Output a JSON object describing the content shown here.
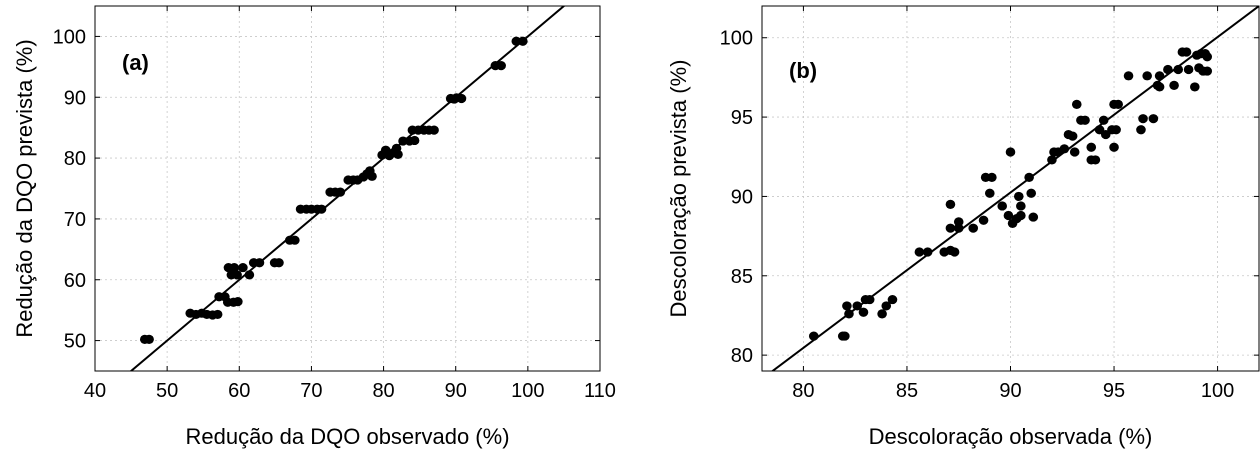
{
  "chart_data": [
    {
      "type": "scatter",
      "panel_label": "(a)",
      "xlabel": "Redução da DQO observado (%)",
      "ylabel": "Redução da DQO prevista (%)",
      "xlim": [
        40,
        110
      ],
      "ylim": [
        45,
        105
      ],
      "xticks": [
        40,
        50,
        60,
        70,
        80,
        90,
        100,
        110
      ],
      "yticks": [
        50,
        60,
        70,
        80,
        90,
        100
      ],
      "grid": true,
      "fit_line": {
        "type": "y=x",
        "x": [
          40,
          110
        ],
        "y": [
          40,
          110
        ]
      },
      "points": [
        [
          46.9,
          50.2
        ],
        [
          47.5,
          50.2
        ],
        [
          53.2,
          54.5
        ],
        [
          54.0,
          54.3
        ],
        [
          54.8,
          54.5
        ],
        [
          55.5,
          54.3
        ],
        [
          56.3,
          54.2
        ],
        [
          57.0,
          54.3
        ],
        [
          57.2,
          57.2
        ],
        [
          58.0,
          57.2
        ],
        [
          58.4,
          56.3
        ],
        [
          59.2,
          56.3
        ],
        [
          59.8,
          56.4
        ],
        [
          58.5,
          62.0
        ],
        [
          59.3,
          62.0
        ],
        [
          58.9,
          60.8
        ],
        [
          59.7,
          60.8
        ],
        [
          60.5,
          62.0
        ],
        [
          61.4,
          60.8
        ],
        [
          62.0,
          62.8
        ],
        [
          62.8,
          62.8
        ],
        [
          64.9,
          62.8
        ],
        [
          65.5,
          62.8
        ],
        [
          67.0,
          66.5
        ],
        [
          67.7,
          66.5
        ],
        [
          68.5,
          71.6
        ],
        [
          69.3,
          71.6
        ],
        [
          70.0,
          71.6
        ],
        [
          70.8,
          71.6
        ],
        [
          71.4,
          71.6
        ],
        [
          72.6,
          74.4
        ],
        [
          73.3,
          74.4
        ],
        [
          74.0,
          74.4
        ],
        [
          75.1,
          76.4
        ],
        [
          75.8,
          76.4
        ],
        [
          76.4,
          76.4
        ],
        [
          77.2,
          76.9
        ],
        [
          77.7,
          77.4
        ],
        [
          78.1,
          77.9
        ],
        [
          78.4,
          77.0
        ],
        [
          79.8,
          80.5
        ],
        [
          80.3,
          81.3
        ],
        [
          80.8,
          80.4
        ],
        [
          81.4,
          80.9
        ],
        [
          81.8,
          81.6
        ],
        [
          82.0,
          80.6
        ],
        [
          82.7,
          82.8
        ],
        [
          83.6,
          82.8
        ],
        [
          84.3,
          82.9
        ],
        [
          84.0,
          84.6
        ],
        [
          84.8,
          84.6
        ],
        [
          85.6,
          84.6
        ],
        [
          86.3,
          84.6
        ],
        [
          87.0,
          84.6
        ],
        [
          89.3,
          89.8
        ],
        [
          90.1,
          89.9
        ],
        [
          90.8,
          89.8
        ],
        [
          89.8,
          89.7
        ],
        [
          95.5,
          95.2
        ],
        [
          96.3,
          95.2
        ],
        [
          98.4,
          99.2
        ],
        [
          99.3,
          99.2
        ]
      ]
    },
    {
      "type": "scatter",
      "panel_label": "(b)",
      "xlabel": "Descoloração observada (%)",
      "ylabel": "Descoloração prevista (%)",
      "xlim": [
        78,
        102
      ],
      "ylim": [
        79,
        102
      ],
      "xticks": [
        80,
        85,
        90,
        95,
        100
      ],
      "yticks": [
        80,
        85,
        90,
        95,
        100
      ],
      "grid": true,
      "fit_line": {
        "type": "y=x",
        "x": [
          78,
          102
        ],
        "y": [
          78.5,
          102
        ]
      },
      "points": [
        [
          80.5,
          81.2
        ],
        [
          81.9,
          81.2
        ],
        [
          82.0,
          81.2
        ],
        [
          82.1,
          83.1
        ],
        [
          82.2,
          82.6
        ],
        [
          82.6,
          83.1
        ],
        [
          82.9,
          82.7
        ],
        [
          83.0,
          83.5
        ],
        [
          83.2,
          83.5
        ],
        [
          83.8,
          82.6
        ],
        [
          84.0,
          83.1
        ],
        [
          84.3,
          83.5
        ],
        [
          85.6,
          86.5
        ],
        [
          86.0,
          86.5
        ],
        [
          86.8,
          86.5
        ],
        [
          87.1,
          86.6
        ],
        [
          87.1,
          88.0
        ],
        [
          87.1,
          89.5
        ],
        [
          87.3,
          86.5
        ],
        [
          87.5,
          88.0
        ],
        [
          87.5,
          88.4
        ],
        [
          88.2,
          88.0
        ],
        [
          88.7,
          88.5
        ],
        [
          88.8,
          91.2
        ],
        [
          89.0,
          90.2
        ],
        [
          89.1,
          91.2
        ],
        [
          89.6,
          89.4
        ],
        [
          89.9,
          88.8
        ],
        [
          90.0,
          92.8
        ],
        [
          90.1,
          88.3
        ],
        [
          90.3,
          88.6
        ],
        [
          90.4,
          90.0
        ],
        [
          90.5,
          89.4
        ],
        [
          90.5,
          88.8
        ],
        [
          90.9,
          91.2
        ],
        [
          91.0,
          90.2
        ],
        [
          91.1,
          88.7
        ],
        [
          92.0,
          92.3
        ],
        [
          92.1,
          92.8
        ],
        [
          92.3,
          92.8
        ],
        [
          92.6,
          93.0
        ],
        [
          92.8,
          93.9
        ],
        [
          93.0,
          93.8
        ],
        [
          93.1,
          92.8
        ],
        [
          93.2,
          95.8
        ],
        [
          93.4,
          94.8
        ],
        [
          93.6,
          94.8
        ],
        [
          93.9,
          93.1
        ],
        [
          93.9,
          92.3
        ],
        [
          94.1,
          92.3
        ],
        [
          94.3,
          94.2
        ],
        [
          94.5,
          94.8
        ],
        [
          94.6,
          93.9
        ],
        [
          94.9,
          94.2
        ],
        [
          95.0,
          93.1
        ],
        [
          95.0,
          95.8
        ],
        [
          95.1,
          94.2
        ],
        [
          95.2,
          95.8
        ],
        [
          95.7,
          97.6
        ],
        [
          96.3,
          94.2
        ],
        [
          96.4,
          94.9
        ],
        [
          96.6,
          97.6
        ],
        [
          96.9,
          94.9
        ],
        [
          97.1,
          97.0
        ],
        [
          97.2,
          97.6
        ],
        [
          97.2,
          96.9
        ],
        [
          97.6,
          98.0
        ],
        [
          97.9,
          97.0
        ],
        [
          98.1,
          98.0
        ],
        [
          98.3,
          99.1
        ],
        [
          98.5,
          99.1
        ],
        [
          98.6,
          98.0
        ],
        [
          98.9,
          96.9
        ],
        [
          99.0,
          98.9
        ],
        [
          99.1,
          98.1
        ],
        [
          99.2,
          99.0
        ],
        [
          99.3,
          97.9
        ],
        [
          99.4,
          99.0
        ],
        [
          99.5,
          97.9
        ],
        [
          99.5,
          98.8
        ]
      ]
    }
  ]
}
